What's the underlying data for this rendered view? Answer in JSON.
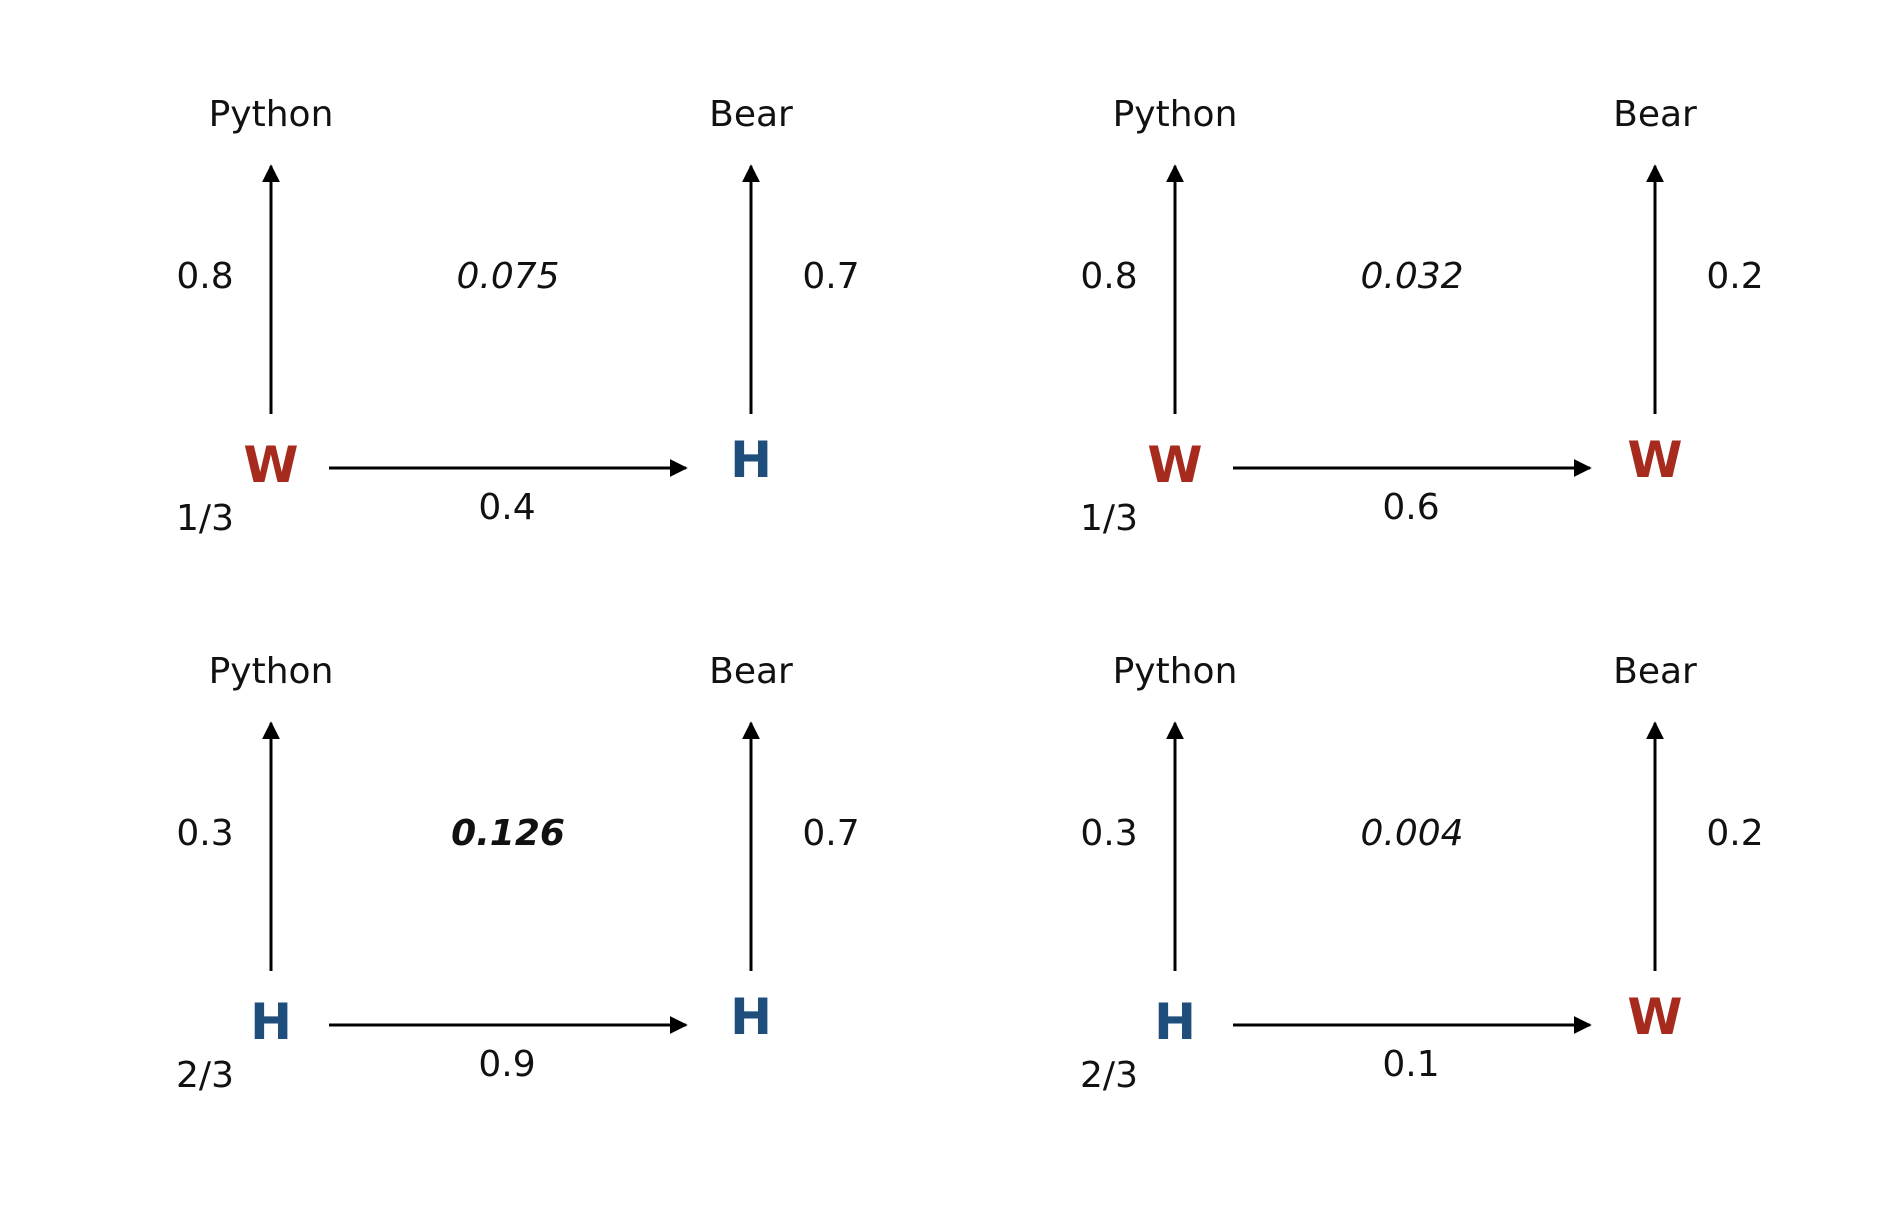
{
  "colors": {
    "W": "#a62a1e",
    "H": "#1f4e7d"
  },
  "panels": [
    {
      "obs_left": "Python",
      "obs_right": "Bear",
      "emit_left": "0.8",
      "emit_right": "0.7",
      "path_prob": "0.075",
      "best": false,
      "state_start": "W",
      "state_end": "H",
      "initial": "1/3",
      "transition": "0.4"
    },
    {
      "obs_left": "Python",
      "obs_right": "Bear",
      "emit_left": "0.8",
      "emit_right": "0.2",
      "path_prob": "0.032",
      "best": false,
      "state_start": "W",
      "state_end": "W",
      "initial": "1/3",
      "transition": "0.6"
    },
    {
      "obs_left": "Python",
      "obs_right": "Bear",
      "emit_left": "0.3",
      "emit_right": "0.7",
      "path_prob": "0.126",
      "best": true,
      "state_start": "H",
      "state_end": "H",
      "initial": "2/3",
      "transition": "0.9"
    },
    {
      "obs_left": "Python",
      "obs_right": "Bear",
      "emit_left": "0.3",
      "emit_right": "0.2",
      "path_prob": "0.004",
      "best": false,
      "state_start": "H",
      "state_end": "W",
      "initial": "2/3",
      "transition": "0.1"
    }
  ]
}
